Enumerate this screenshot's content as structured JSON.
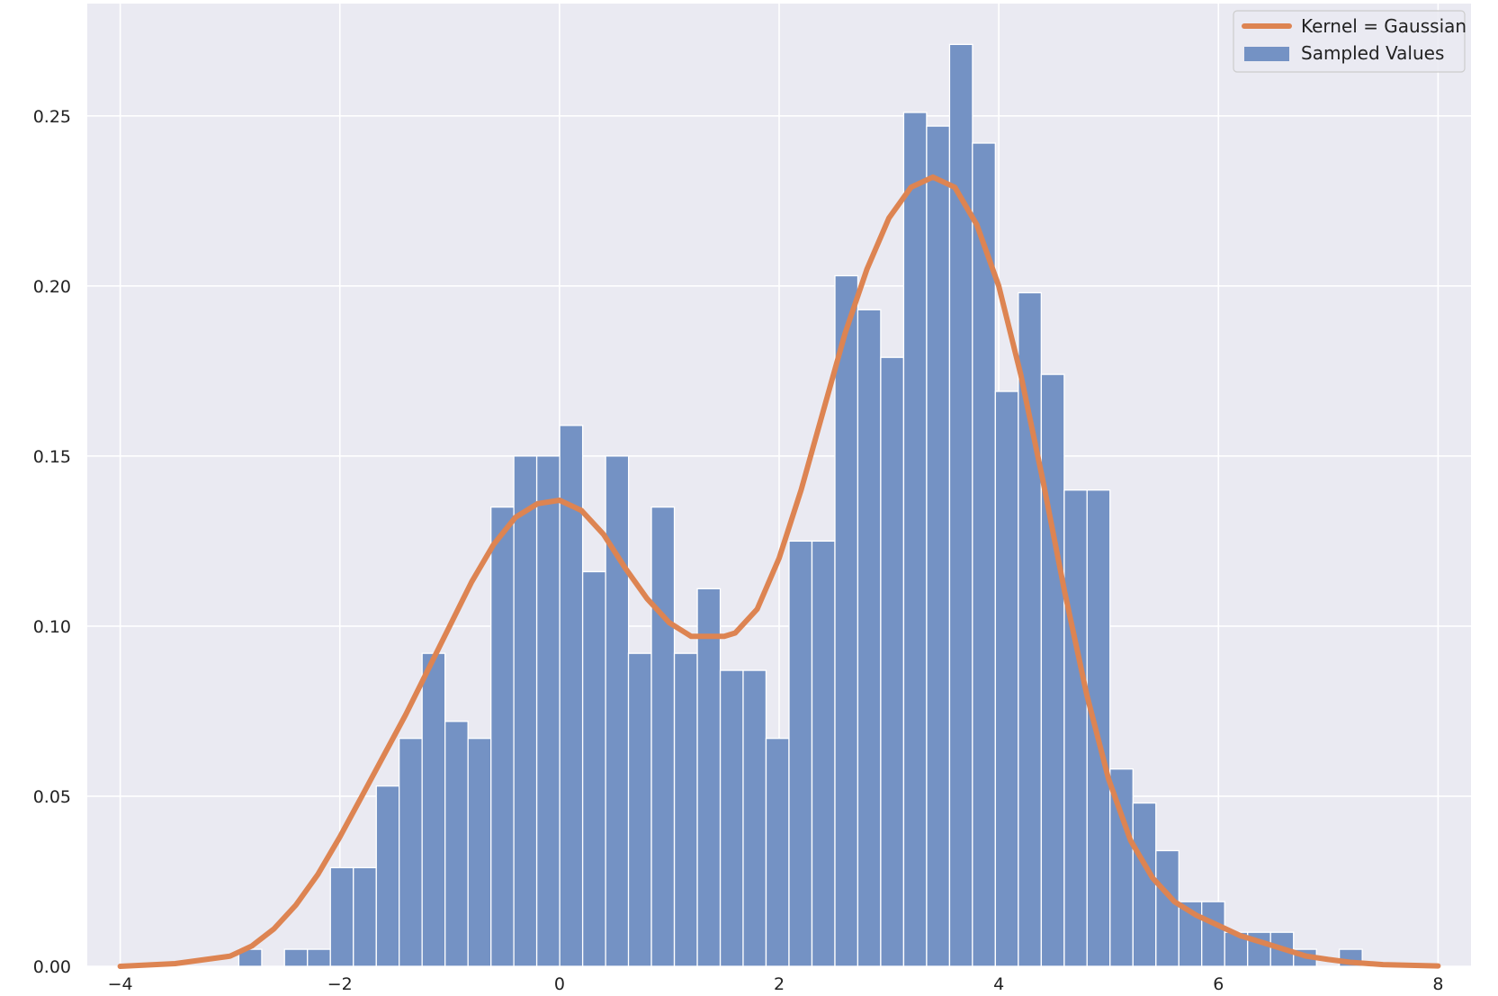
{
  "chart_data": {
    "type": "bar",
    "title": "",
    "xlabel": "",
    "ylabel": "",
    "xlim": [
      -4.3,
      8.3
    ],
    "ylim": [
      0,
      0.283
    ],
    "grid": true,
    "legend_position": "top-right",
    "xticks": [
      -4,
      -2,
      0,
      2,
      4,
      6,
      8
    ],
    "xtick_labels": [
      "−4",
      "−2",
      "0",
      "2",
      "4",
      "6",
      "8"
    ],
    "yticks": [
      0,
      0.05,
      0.1,
      0.15,
      0.2,
      0.25
    ],
    "ytick_labels": [
      "0.00",
      "0.05",
      "0.10",
      "0.15",
      "0.20",
      "0.25"
    ],
    "colors": {
      "background": "#eaeaf2",
      "grid": "#ffffff",
      "bars": "#7492c4",
      "bar_edge": "#ffffff",
      "kde": "#dd8452"
    },
    "series": [
      {
        "name": "Sampled Values",
        "type": "histogram",
        "bin_width": 0.2088,
        "bins": [
          {
            "x0": -2.92,
            "value": 0.005
          },
          {
            "x0": -2.504,
            "value": 0.005
          },
          {
            "x0": -2.295,
            "value": 0.005
          },
          {
            "x0": -2.086,
            "value": 0.029
          },
          {
            "x0": -1.877,
            "value": 0.029
          },
          {
            "x0": -1.668,
            "value": 0.053
          },
          {
            "x0": -1.46,
            "value": 0.067
          },
          {
            "x0": -1.251,
            "value": 0.092
          },
          {
            "x0": -1.042,
            "value": 0.072
          },
          {
            "x0": -0.833,
            "value": 0.067
          },
          {
            "x0": -0.624,
            "value": 0.135
          },
          {
            "x0": -0.416,
            "value": 0.15
          },
          {
            "x0": -0.207,
            "value": 0.15
          },
          {
            "x0": 0.002,
            "value": 0.159
          },
          {
            "x0": 0.211,
            "value": 0.116
          },
          {
            "x0": 0.42,
            "value": 0.15
          },
          {
            "x0": 0.628,
            "value": 0.092
          },
          {
            "x0": 0.837,
            "value": 0.135
          },
          {
            "x0": 1.046,
            "value": 0.092
          },
          {
            "x0": 1.255,
            "value": 0.111
          },
          {
            "x0": 1.464,
            "value": 0.087
          },
          {
            "x0": 1.672,
            "value": 0.087
          },
          {
            "x0": 1.881,
            "value": 0.067
          },
          {
            "x0": 2.09,
            "value": 0.125
          },
          {
            "x0": 2.299,
            "value": 0.125
          },
          {
            "x0": 2.508,
            "value": 0.203
          },
          {
            "x0": 2.716,
            "value": 0.193
          },
          {
            "x0": 2.925,
            "value": 0.179
          },
          {
            "x0": 3.134,
            "value": 0.251
          },
          {
            "x0": 3.343,
            "value": 0.247
          },
          {
            "x0": 3.552,
            "value": 0.271
          },
          {
            "x0": 3.76,
            "value": 0.242
          },
          {
            "x0": 3.969,
            "value": 0.169
          },
          {
            "x0": 4.178,
            "value": 0.198
          },
          {
            "x0": 4.387,
            "value": 0.174
          },
          {
            "x0": 4.596,
            "value": 0.14
          },
          {
            "x0": 4.804,
            "value": 0.14
          },
          {
            "x0": 5.013,
            "value": 0.058
          },
          {
            "x0": 5.222,
            "value": 0.048
          },
          {
            "x0": 5.431,
            "value": 0.034
          },
          {
            "x0": 5.64,
            "value": 0.019
          },
          {
            "x0": 5.848,
            "value": 0.019
          },
          {
            "x0": 6.057,
            "value": 0.01
          },
          {
            "x0": 6.266,
            "value": 0.01
          },
          {
            "x0": 6.475,
            "value": 0.01
          },
          {
            "x0": 6.684,
            "value": 0.005
          },
          {
            "x0": 7.101,
            "value": 0.005
          }
        ]
      },
      {
        "name": "Kernel = Gaussian",
        "type": "line",
        "x": [
          -4.0,
          -3.5,
          -3.0,
          -2.8,
          -2.6,
          -2.4,
          -2.2,
          -2.0,
          -1.8,
          -1.6,
          -1.4,
          -1.2,
          -1.0,
          -0.8,
          -0.6,
          -0.4,
          -0.2,
          0.0,
          0.2,
          0.4,
          0.6,
          0.8,
          1.0,
          1.2,
          1.4,
          1.5,
          1.6,
          1.8,
          2.0,
          2.2,
          2.4,
          2.6,
          2.8,
          3.0,
          3.2,
          3.4,
          3.6,
          3.8,
          4.0,
          4.2,
          4.4,
          4.6,
          4.8,
          5.0,
          5.2,
          5.4,
          5.6,
          5.8,
          6.0,
          6.2,
          6.4,
          6.6,
          6.8,
          7.0,
          7.2,
          7.5,
          8.0
        ],
        "y": [
          0.0,
          0.0008,
          0.003,
          0.006,
          0.011,
          0.018,
          0.027,
          0.038,
          0.05,
          0.062,
          0.074,
          0.087,
          0.1,
          0.113,
          0.124,
          0.132,
          0.136,
          0.137,
          0.134,
          0.127,
          0.117,
          0.108,
          0.101,
          0.097,
          0.097,
          0.097,
          0.098,
          0.105,
          0.12,
          0.14,
          0.163,
          0.186,
          0.205,
          0.22,
          0.229,
          0.232,
          0.229,
          0.218,
          0.2,
          0.174,
          0.143,
          0.11,
          0.08,
          0.055,
          0.037,
          0.026,
          0.019,
          0.015,
          0.012,
          0.009,
          0.007,
          0.005,
          0.003,
          0.002,
          0.0012,
          0.0005,
          0.0001
        ]
      }
    ]
  }
}
